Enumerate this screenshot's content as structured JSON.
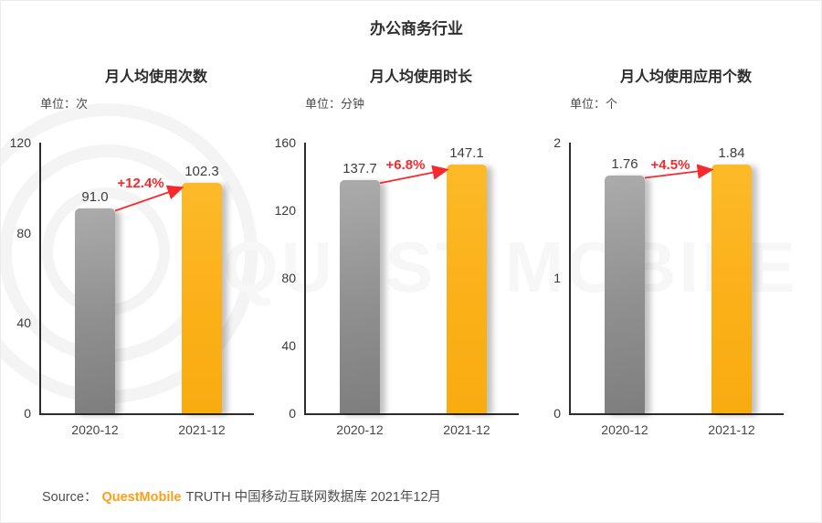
{
  "page": {
    "title": "办公商务行业",
    "watermark_text": "QUEST MOBILE",
    "source": {
      "prefix": "Source：",
      "brand": "QuestMobile",
      "suffix": "TRUTH 中国移动互联网数据库 2021年12月"
    }
  },
  "colors": {
    "bar_previous_gray": "#969696",
    "bar_current_yellow": "#FBB019",
    "growth_red": "#F8282C",
    "brand_orange": "#F9A01B",
    "axis_dark": "#2D2D2D",
    "watermark_gray": "#F5F5F5"
  },
  "chart_data": [
    {
      "type": "bar",
      "title": "月人均使用次数",
      "unit_label": "单位：次",
      "categories": [
        "2020-12",
        "2021-12"
      ],
      "values": [
        91.0,
        102.3
      ],
      "value_labels": [
        "91.0",
        "102.3"
      ],
      "growth_label": "+12.4%",
      "ylim": [
        0,
        120
      ],
      "yticks": [
        0,
        40,
        80,
        120
      ],
      "legend_position": "none",
      "grid": false
    },
    {
      "type": "bar",
      "title": "月人均使用时长",
      "unit_label": "单位：分钟",
      "categories": [
        "2020-12",
        "2021-12"
      ],
      "values": [
        137.7,
        147.1
      ],
      "value_labels": [
        "137.7",
        "147.1"
      ],
      "growth_label": "+6.8%",
      "ylim": [
        0,
        160
      ],
      "yticks": [
        0,
        40,
        80,
        120,
        160
      ],
      "legend_position": "none",
      "grid": false
    },
    {
      "type": "bar",
      "title": "月人均使用应用个数",
      "unit_label": "单位：个",
      "categories": [
        "2020-12",
        "2021-12"
      ],
      "values": [
        1.76,
        1.84
      ],
      "value_labels": [
        "1.76",
        "1.84"
      ],
      "growth_label": "+4.5%",
      "ylim": [
        0,
        2
      ],
      "yticks": [
        0,
        1,
        2
      ],
      "legend_position": "none",
      "grid": false
    }
  ]
}
